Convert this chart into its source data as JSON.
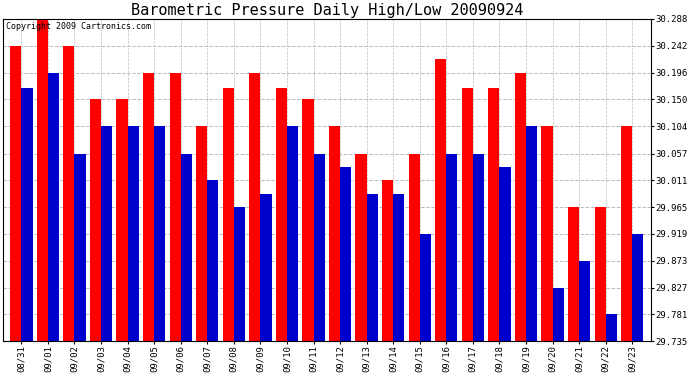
{
  "title": "Barometric Pressure Daily High/Low 20090924",
  "copyright": "Copyright 2009 Cartronics.com",
  "categories": [
    "08/31",
    "09/01",
    "09/02",
    "09/03",
    "09/04",
    "09/05",
    "09/06",
    "09/07",
    "09/08",
    "09/09",
    "09/10",
    "09/11",
    "09/12",
    "09/13",
    "09/14",
    "09/15",
    "09/16",
    "09/17",
    "09/18",
    "09/19",
    "09/20",
    "09/21",
    "09/22",
    "09/23"
  ],
  "highs": [
    30.242,
    30.288,
    30.242,
    30.15,
    30.15,
    30.196,
    30.196,
    30.104,
    30.17,
    30.196,
    30.17,
    30.15,
    30.104,
    30.057,
    30.011,
    30.057,
    30.22,
    30.17,
    30.17,
    30.196,
    30.104,
    29.965,
    29.965,
    30.104
  ],
  "lows": [
    30.17,
    30.196,
    30.057,
    30.104,
    30.104,
    30.104,
    30.057,
    30.011,
    29.965,
    29.988,
    30.104,
    30.057,
    30.034,
    29.988,
    29.988,
    29.919,
    30.057,
    30.057,
    30.034,
    30.104,
    29.827,
    29.873,
    29.781,
    29.919
  ],
  "high_color": "#ff0000",
  "low_color": "#0000cc",
  "bg_color": "#ffffff",
  "grid_color": "#bbbbbb",
  "ymin": 29.735,
  "ymax": 30.288,
  "yticks": [
    29.735,
    29.781,
    29.827,
    29.873,
    29.919,
    29.965,
    30.011,
    30.057,
    30.104,
    30.15,
    30.196,
    30.242,
    30.288
  ],
  "title_fontsize": 11,
  "copyright_fontsize": 6,
  "tick_fontsize": 6.5,
  "bar_width": 0.42
}
